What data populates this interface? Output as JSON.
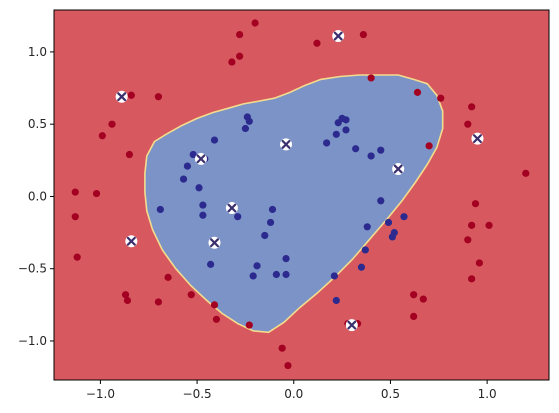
{
  "chart_data": {
    "type": "scatter",
    "title": "",
    "xlabel": "",
    "ylabel": "",
    "xlim": [
      -1.24,
      1.32
    ],
    "ylim": [
      -1.27,
      1.29
    ],
    "x_ticks": [
      -1.0,
      -0.5,
      0.0,
      0.5,
      1.0
    ],
    "x_tick_labels": [
      "−1.0",
      "−0.5",
      "0.0",
      "0.5",
      "1.0"
    ],
    "y_ticks": [
      -1.0,
      -0.5,
      0.0,
      0.5,
      1.0
    ],
    "y_tick_labels": [
      "−1.0",
      "−0.5",
      "0.0",
      "0.5",
      "1.0"
    ],
    "grid": false,
    "legend": "none",
    "colors": {
      "outer_region": "#d7595f",
      "inner_region": "#7b93c6",
      "boundary": "#f3dc8d",
      "class_outer": "#a30022",
      "class_inner": "#2c2a8f",
      "cross_marker": "#3b2f6e"
    },
    "decision_boundary": [
      [
        -0.72,
        0.38
      ],
      [
        -0.66,
        0.43
      ],
      [
        -0.58,
        0.49
      ],
      [
        -0.5,
        0.54
      ],
      [
        -0.42,
        0.58
      ],
      [
        -0.34,
        0.61
      ],
      [
        -0.26,
        0.64
      ],
      [
        -0.18,
        0.66
      ],
      [
        -0.1,
        0.68
      ],
      [
        -0.02,
        0.72
      ],
      [
        0.06,
        0.77
      ],
      [
        0.14,
        0.81
      ],
      [
        0.24,
        0.83
      ],
      [
        0.34,
        0.84
      ],
      [
        0.44,
        0.84
      ],
      [
        0.54,
        0.84
      ],
      [
        0.62,
        0.81
      ],
      [
        0.69,
        0.78
      ],
      [
        0.74,
        0.7
      ],
      [
        0.77,
        0.59
      ],
      [
        0.77,
        0.47
      ],
      [
        0.74,
        0.34
      ],
      [
        0.69,
        0.22
      ],
      [
        0.63,
        0.1
      ],
      [
        0.56,
        -0.03
      ],
      [
        0.48,
        -0.16
      ],
      [
        0.39,
        -0.3
      ],
      [
        0.3,
        -0.44
      ],
      [
        0.21,
        -0.56
      ],
      [
        0.12,
        -0.67
      ],
      [
        0.03,
        -0.77
      ],
      [
        -0.05,
        -0.87
      ],
      [
        -0.13,
        -0.94
      ],
      [
        -0.21,
        -0.93
      ],
      [
        -0.29,
        -0.88
      ],
      [
        -0.37,
        -0.81
      ],
      [
        -0.45,
        -0.72
      ],
      [
        -0.53,
        -0.62
      ],
      [
        -0.61,
        -0.5
      ],
      [
        -0.68,
        -0.37
      ],
      [
        -0.73,
        -0.23
      ],
      [
        -0.76,
        -0.1
      ],
      [
        -0.77,
        0.03
      ],
      [
        -0.77,
        0.16
      ],
      [
        -0.76,
        0.28
      ]
    ],
    "series": [
      {
        "marker": "circle",
        "color": "#a30022",
        "points": [
          [
            -0.2,
            1.2
          ],
          [
            -0.28,
            1.12
          ],
          [
            0.36,
            1.12
          ],
          [
            0.12,
            1.06
          ],
          [
            -0.28,
            0.97
          ],
          [
            -0.32,
            0.93
          ],
          [
            -0.84,
            0.7
          ],
          [
            -0.7,
            0.69
          ],
          [
            0.4,
            0.82
          ],
          [
            0.64,
            0.72
          ],
          [
            0.76,
            0.68
          ],
          [
            0.92,
            0.62
          ],
          [
            0.9,
            0.5
          ],
          [
            -0.94,
            0.5
          ],
          [
            -0.99,
            0.42
          ],
          [
            -0.85,
            0.29
          ],
          [
            0.7,
            0.35
          ],
          [
            -1.13,
            0.03
          ],
          [
            -1.02,
            0.02
          ],
          [
            1.2,
            0.16
          ],
          [
            -1.13,
            -0.14
          ],
          [
            0.94,
            -0.05
          ],
          [
            -1.12,
            -0.42
          ],
          [
            0.92,
            -0.2
          ],
          [
            1.01,
            -0.2
          ],
          [
            0.9,
            -0.3
          ],
          [
            -0.65,
            -0.56
          ],
          [
            0.96,
            -0.46
          ],
          [
            0.92,
            -0.57
          ],
          [
            -0.87,
            -0.68
          ],
          [
            -0.7,
            -0.73
          ],
          [
            -0.86,
            -0.72
          ],
          [
            -0.53,
            -0.68
          ],
          [
            0.62,
            -0.68
          ],
          [
            0.67,
            -0.71
          ],
          [
            -0.4,
            -0.85
          ],
          [
            -0.41,
            -0.75
          ],
          [
            -0.23,
            -0.89
          ],
          [
            0.33,
            -0.88
          ],
          [
            0.28,
            -0.88
          ],
          [
            -0.06,
            -1.05
          ],
          [
            -0.03,
            -1.17
          ],
          [
            0.62,
            -0.83
          ]
        ]
      },
      {
        "marker": "circle",
        "color": "#2c2a8f",
        "points": [
          [
            -0.41,
            0.39
          ],
          [
            -0.24,
            0.55
          ],
          [
            -0.23,
            0.52
          ],
          [
            -0.25,
            0.47
          ],
          [
            0.25,
            0.54
          ],
          [
            0.23,
            0.51
          ],
          [
            0.27,
            0.53
          ],
          [
            0.27,
            0.46
          ],
          [
            0.22,
            0.43
          ],
          [
            0.17,
            0.37
          ],
          [
            0.32,
            0.33
          ],
          [
            0.4,
            0.28
          ],
          [
            0.45,
            0.32
          ],
          [
            -0.52,
            0.29
          ],
          [
            -0.46,
            0.26
          ],
          [
            -0.55,
            0.21
          ],
          [
            -0.57,
            0.12
          ],
          [
            -0.49,
            0.06
          ],
          [
            -0.47,
            -0.06
          ],
          [
            -0.69,
            -0.09
          ],
          [
            -0.47,
            -0.13
          ],
          [
            -0.29,
            -0.14
          ],
          [
            -0.11,
            -0.09
          ],
          [
            -0.12,
            -0.18
          ],
          [
            -0.15,
            -0.27
          ],
          [
            0.45,
            -0.03
          ],
          [
            0.57,
            -0.14
          ],
          [
            0.49,
            -0.18
          ],
          [
            0.38,
            -0.21
          ],
          [
            0.52,
            -0.25
          ],
          [
            0.51,
            -0.28
          ],
          [
            0.37,
            -0.37
          ],
          [
            -0.43,
            -0.47
          ],
          [
            -0.19,
            -0.48
          ],
          [
            -0.21,
            -0.55
          ],
          [
            -0.09,
            -0.54
          ],
          [
            -0.04,
            -0.54
          ],
          [
            -0.04,
            -0.43
          ],
          [
            0.21,
            -0.55
          ],
          [
            0.35,
            -0.49
          ],
          [
            0.22,
            -0.72
          ]
        ]
      },
      {
        "marker": "x",
        "color": "#3b2f6e",
        "points": [
          [
            0.23,
            1.11
          ],
          [
            -0.89,
            0.69
          ],
          [
            0.95,
            0.4
          ],
          [
            -0.04,
            0.36
          ],
          [
            -0.48,
            0.26
          ],
          [
            0.54,
            0.19
          ],
          [
            -0.32,
            -0.08
          ],
          [
            -0.84,
            -0.31
          ],
          [
            -0.41,
            -0.32
          ],
          [
            0.3,
            -0.89
          ]
        ]
      }
    ]
  }
}
